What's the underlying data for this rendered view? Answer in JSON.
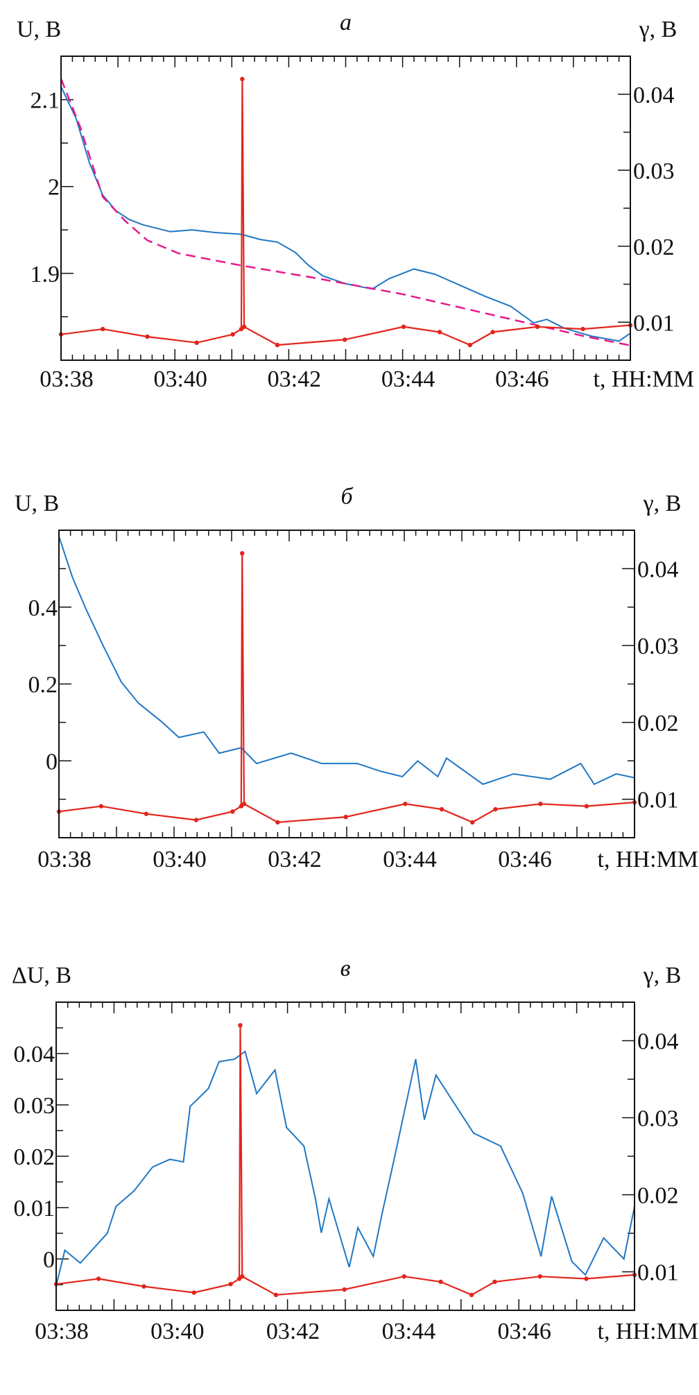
{
  "chart_data": [
    {
      "type": "line",
      "title": "а",
      "xlabel": "t, HH:MM",
      "ylabel": "U, B",
      "y2label": "γ, B",
      "xlim": [
        "03:38:00",
        "03:48:00"
      ],
      "ylim": [
        1.8,
        2.15
      ],
      "y2lim": [
        0.005,
        0.045
      ],
      "xticks": [
        "03:38",
        "03:40",
        "03:42",
        "03:44",
        "03:46"
      ],
      "yticks": [
        "1.9",
        "2",
        "2.1"
      ],
      "y2ticks": [
        "0.01",
        "0.02",
        "0.03",
        "0.04"
      ],
      "grid": false,
      "series": [
        {
          "axis": "left",
          "color": "#1f77c4",
          "style": "solid",
          "points": [
            [
              "03:38:00",
              2.115
            ],
            [
              "03:38:16",
              2.078
            ],
            [
              "03:38:30",
              2.027
            ],
            [
              "03:38:44",
              1.99
            ],
            [
              "03:38:58",
              1.972
            ],
            [
              "03:39:12",
              1.962
            ],
            [
              "03:39:26",
              1.956
            ],
            [
              "03:39:55",
              1.948
            ],
            [
              "03:40:18",
              1.95
            ],
            [
              "03:40:42",
              1.947
            ],
            [
              "03:41:10",
              1.945
            ],
            [
              "03:41:30",
              1.939
            ],
            [
              "03:41:48",
              1.936
            ],
            [
              "03:42:07",
              1.924
            ],
            [
              "03:42:21",
              1.909
            ],
            [
              "03:42:36",
              1.897
            ],
            [
              "03:43:00",
              1.888
            ],
            [
              "03:43:28",
              1.882
            ],
            [
              "03:43:46",
              1.894
            ],
            [
              "03:44:12",
              1.905
            ],
            [
              "03:44:34",
              1.899
            ],
            [
              "03:44:57",
              1.888
            ],
            [
              "03:45:26",
              1.874
            ],
            [
              "03:45:54",
              1.862
            ],
            [
              "03:46:18",
              1.843
            ],
            [
              "03:46:32",
              1.847
            ],
            [
              "03:46:50",
              1.837
            ],
            [
              "03:47:18",
              1.828
            ],
            [
              "03:47:48",
              1.822
            ],
            [
              "03:48:00",
              1.831
            ]
          ]
        },
        {
          "axis": "left",
          "color": "#e6198a",
          "style": "dashed",
          "points": [
            [
              "03:38:00",
              2.124
            ],
            [
              "03:38:20",
              2.069
            ],
            [
              "03:38:44",
              1.988
            ],
            [
              "03:39:08",
              1.96
            ],
            [
              "03:39:31",
              1.938
            ],
            [
              "03:40:04",
              1.923
            ],
            [
              "03:41:10",
              1.909
            ],
            [
              "03:42:26",
              1.895
            ],
            [
              "03:44:00",
              1.876
            ],
            [
              "03:45:35",
              1.852
            ],
            [
              "03:47:10",
              1.828
            ],
            [
              "03:48:00",
              1.817
            ]
          ]
        },
        {
          "axis": "right",
          "color": "#e3241b",
          "style": "markers",
          "points": [
            [
              "03:38:00",
              0.0084
            ],
            [
              "03:38:44",
              0.0091
            ],
            [
              "03:39:31",
              0.0081
            ],
            [
              "03:40:23",
              0.0073
            ],
            [
              "03:41:01",
              0.0084
            ],
            [
              "03:41:10",
              0.0091
            ],
            [
              "03:41:11",
              0.042
            ],
            [
              "03:41:13",
              0.0094
            ],
            [
              "03:41:48",
              0.007
            ],
            [
              "03:42:59",
              0.0077
            ],
            [
              "03:44:01",
              0.0094
            ],
            [
              "03:44:39",
              0.0087
            ],
            [
              "03:45:11",
              0.007
            ],
            [
              "03:45:35",
              0.0087
            ],
            [
              "03:46:22",
              0.0094
            ],
            [
              "03:47:10",
              0.0091
            ],
            [
              "03:48:00",
              0.0096
            ]
          ]
        }
      ]
    },
    {
      "type": "line",
      "title": "б",
      "xlabel": "t, HH:MM",
      "ylabel": "U, B",
      "y2label": "γ, B",
      "xlim": [
        "03:38:00",
        "03:48:00"
      ],
      "ylim": [
        -0.2,
        0.6
      ],
      "y2lim": [
        0.005,
        0.045
      ],
      "xticks": [
        "03:38",
        "03:40",
        "03:42",
        "03:44",
        "03:46"
      ],
      "yticks": [
        "0",
        "0.2",
        "0.4"
      ],
      "y2ticks": [
        "0.01",
        "0.02",
        "0.03",
        "0.04"
      ],
      "grid": false,
      "series": [
        {
          "axis": "left",
          "color": "#1f77c4",
          "style": "solid",
          "points": [
            [
              "03:38:00",
              0.584
            ],
            [
              "03:38:14",
              0.478
            ],
            [
              "03:38:28",
              0.396
            ],
            [
              "03:38:46",
              0.3
            ],
            [
              "03:39:05",
              0.205
            ],
            [
              "03:39:23",
              0.15
            ],
            [
              "03:39:47",
              0.102
            ],
            [
              "03:40:05",
              0.061
            ],
            [
              "03:40:31",
              0.075
            ],
            [
              "03:40:47",
              0.02
            ],
            [
              "03:41:10",
              0.034
            ],
            [
              "03:41:26",
              -0.007
            ],
            [
              "03:42:02",
              0.02
            ],
            [
              "03:42:34",
              -0.007
            ],
            [
              "03:43:11",
              -0.007
            ],
            [
              "03:43:35",
              -0.027
            ],
            [
              "03:43:58",
              -0.041
            ],
            [
              "03:44:14",
              0
            ],
            [
              "03:44:35",
              -0.041
            ],
            [
              "03:44:44",
              0.007
            ],
            [
              "03:45:22",
              -0.061
            ],
            [
              "03:45:54",
              -0.034
            ],
            [
              "03:46:32",
              -0.048
            ],
            [
              "03:47:04",
              -0.007
            ],
            [
              "03:47:18",
              -0.061
            ],
            [
              "03:47:41",
              -0.034
            ],
            [
              "03:48:00",
              -0.044
            ]
          ]
        },
        {
          "axis": "right",
          "color": "#e3241b",
          "style": "markers",
          "points": [
            [
              "03:38:00",
              0.0084
            ],
            [
              "03:38:44",
              0.0091
            ],
            [
              "03:39:31",
              0.0081
            ],
            [
              "03:40:23",
              0.0073
            ],
            [
              "03:41:01",
              0.0084
            ],
            [
              "03:41:10",
              0.0091
            ],
            [
              "03:41:11",
              0.042
            ],
            [
              "03:41:13",
              0.0094
            ],
            [
              "03:41:48",
              0.007
            ],
            [
              "03:42:59",
              0.0077
            ],
            [
              "03:44:01",
              0.0094
            ],
            [
              "03:44:39",
              0.0087
            ],
            [
              "03:45:11",
              0.007
            ],
            [
              "03:45:35",
              0.0087
            ],
            [
              "03:46:22",
              0.0094
            ],
            [
              "03:47:10",
              0.0091
            ],
            [
              "03:48:00",
              0.0096
            ]
          ]
        }
      ]
    },
    {
      "type": "line",
      "title": "в",
      "xlabel": "t, HH:MM",
      "ylabel": "ΔU, B",
      "y2label": "γ, B",
      "xlim": [
        "03:38:00",
        "03:48:00"
      ],
      "ylim": [
        -0.01,
        0.05
      ],
      "y2lim": [
        0.005,
        0.045
      ],
      "xticks": [
        "03:38",
        "03:40",
        "03:42",
        "03:44",
        "03:46"
      ],
      "yticks": [
        "0",
        "0.01",
        "0.02",
        "0.03",
        "0.04"
      ],
      "y2ticks": [
        "0.01",
        "0.02",
        "0.03",
        "0.04"
      ],
      "grid": false,
      "series": [
        {
          "axis": "left",
          "color": "#1f77c4",
          "style": "solid",
          "points": [
            [
              "03:38:00",
              -0.0052
            ],
            [
              "03:38:09",
              0.0017
            ],
            [
              "03:38:25",
              -0.0008
            ],
            [
              "03:38:53",
              0.005
            ],
            [
              "03:39:02",
              0.0102
            ],
            [
              "03:39:21",
              0.0133
            ],
            [
              "03:39:40",
              0.0179
            ],
            [
              "03:39:58",
              0.0194
            ],
            [
              "03:40:12",
              0.0189
            ],
            [
              "03:40:19",
              0.0297
            ],
            [
              "03:40:38",
              0.0332
            ],
            [
              "03:40:49",
              0.0384
            ],
            [
              "03:41:05",
              0.0389
            ],
            [
              "03:41:16",
              0.0404
            ],
            [
              "03:41:28",
              0.0322
            ],
            [
              "03:41:47",
              0.0368
            ],
            [
              "03:41:59",
              0.0256
            ],
            [
              "03:42:17",
              0.022
            ],
            [
              "03:42:29",
              0.0117
            ],
            [
              "03:42:35",
              0.0051
            ],
            [
              "03:42:43",
              0.0117
            ],
            [
              "03:43:04",
              -0.0016
            ],
            [
              "03:43:13",
              0.0061
            ],
            [
              "03:43:29",
              0.0005
            ],
            [
              "03:43:38",
              0.0087
            ],
            [
              "03:43:50",
              0.0189
            ],
            [
              "03:44:13",
              0.0389
            ],
            [
              "03:44:22",
              0.0271
            ],
            [
              "03:44:34",
              0.0358
            ],
            [
              "03:45:13",
              0.0245
            ],
            [
              "03:45:41",
              0.022
            ],
            [
              "03:46:04",
              0.0128
            ],
            [
              "03:46:23",
              0.0005
            ],
            [
              "03:46:34",
              0.0122
            ],
            [
              "03:46:55",
              -0.0005
            ],
            [
              "03:47:09",
              -0.0031
            ],
            [
              "03:47:28",
              0.0041
            ],
            [
              "03:47:49",
              0
            ],
            [
              "03:48:00",
              0.0102
            ]
          ]
        },
        {
          "axis": "right",
          "color": "#e3241b",
          "style": "markers",
          "points": [
            [
              "03:38:00",
              0.0084
            ],
            [
              "03:38:44",
              0.0091
            ],
            [
              "03:39:31",
              0.0081
            ],
            [
              "03:40:23",
              0.0073
            ],
            [
              "03:41:01",
              0.0084
            ],
            [
              "03:41:10",
              0.0091
            ],
            [
              "03:41:11",
              0.042
            ],
            [
              "03:41:13",
              0.0094
            ],
            [
              "03:41:48",
              0.007
            ],
            [
              "03:42:59",
              0.0077
            ],
            [
              "03:44:01",
              0.0094
            ],
            [
              "03:44:39",
              0.0087
            ],
            [
              "03:45:11",
              0.007
            ],
            [
              "03:45:35",
              0.0087
            ],
            [
              "03:46:22",
              0.0094
            ],
            [
              "03:47:10",
              0.0091
            ],
            [
              "03:48:00",
              0.0096
            ]
          ]
        }
      ]
    }
  ]
}
